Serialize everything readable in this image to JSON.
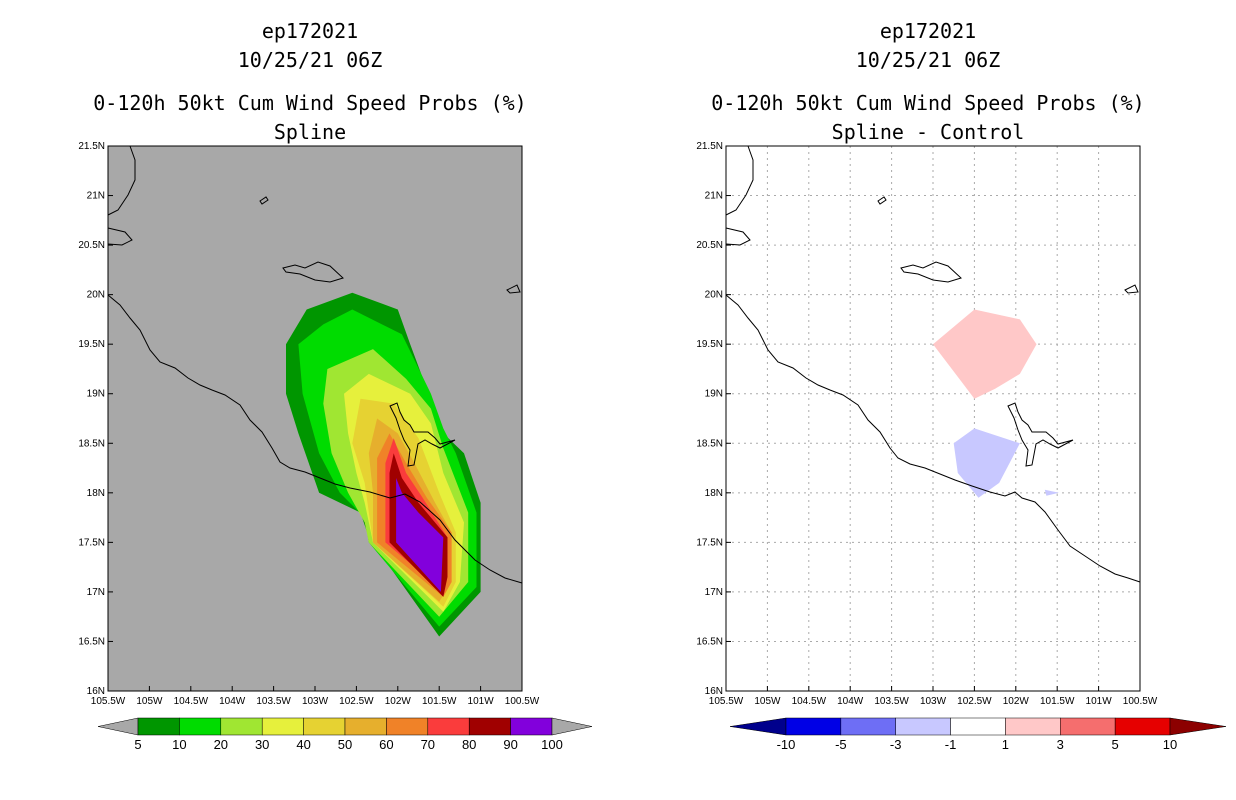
{
  "panels": [
    {
      "title_line1": "ep172021",
      "title_line2": "10/25/21 06Z",
      "title_line3": "0-120h 50kt Cum Wind Speed Probs (%)",
      "title_line4": "Spline"
    },
    {
      "title_line1": "ep172021",
      "title_line2": "10/25/21 06Z",
      "title_line3": "0-120h 50kt Cum Wind Speed Probs (%)",
      "title_line4": "Spline - Control"
    }
  ],
  "chart_data": [
    {
      "type": "heatmap",
      "title": "0-120h 50kt Cum Wind Speed Probs (%)",
      "subtitle": "Spline",
      "xlim": [
        -105.5,
        -100.5
      ],
      "ylim": [
        16,
        21.5
      ],
      "x_ticks": [
        "105.5W",
        "105W",
        "104.5W",
        "104W",
        "103.5W",
        "103W",
        "102.5W",
        "102W",
        "101.5W",
        "101W",
        "100.5W"
      ],
      "y_ticks": [
        "16N",
        "16.5N",
        "17N",
        "17.5N",
        "18N",
        "18.5N",
        "19N",
        "19.5N",
        "20N",
        "20.5N",
        "21N",
        "21.5N"
      ],
      "background": "#a8a8a8",
      "colorbar": {
        "labels": [
          "5",
          "10",
          "20",
          "30",
          "40",
          "50",
          "60",
          "70",
          "80",
          "90",
          "100"
        ],
        "colors": [
          "#009600",
          "#00dc00",
          "#a0e632",
          "#e6f03c",
          "#e6d232",
          "#e6af2d",
          "#f08228",
          "#fa3c3c",
          "#a00000",
          "#8200dc"
        ],
        "under_color": "#a8a8a8",
        "over_color": "#a8a8a8"
      },
      "contours": [
        {
          "level": 5,
          "color": "#009600",
          "polygon": [
            [
              -102.55,
              20.02
            ],
            [
              -103.1,
              19.85
            ],
            [
              -103.1,
              19.85
            ],
            [
              -103.35,
              19.5
            ],
            [
              -103.35,
              19.0
            ],
            [
              -103.2,
              18.6
            ],
            [
              -102.95,
              18.0
            ],
            [
              -102.45,
              17.8
            ],
            [
              -102.35,
              17.55
            ],
            [
              -101.5,
              16.55
            ],
            [
              -101.0,
              17.0
            ],
            [
              -101.0,
              17.9
            ],
            [
              -101.2,
              18.4
            ],
            [
              -101.45,
              18.6
            ],
            [
              -101.85,
              19.5
            ],
            [
              -102.0,
              19.85
            ]
          ]
        },
        {
          "level": 10,
          "color": "#00dc00",
          "polygon": [
            [
              -102.55,
              19.85
            ],
            [
              -102.9,
              19.7
            ],
            [
              -103.2,
              19.5
            ],
            [
              -103.15,
              19.0
            ],
            [
              -102.95,
              18.4
            ],
            [
              -102.7,
              18.0
            ],
            [
              -102.4,
              17.75
            ],
            [
              -102.35,
              17.5
            ],
            [
              -101.5,
              16.65
            ],
            [
              -101.05,
              17.05
            ],
            [
              -101.05,
              17.8
            ],
            [
              -101.3,
              18.4
            ],
            [
              -101.45,
              18.65
            ],
            [
              -101.6,
              19.0
            ],
            [
              -101.95,
              19.6
            ]
          ]
        },
        {
          "level": 20,
          "color": "#a0e632",
          "polygon": [
            [
              -102.3,
              19.45
            ],
            [
              -102.85,
              19.25
            ],
            [
              -102.9,
              18.9
            ],
            [
              -102.8,
              18.4
            ],
            [
              -102.6,
              18.0
            ],
            [
              -102.4,
              17.7
            ],
            [
              -102.35,
              17.5
            ],
            [
              -101.5,
              16.75
            ],
            [
              -101.15,
              17.1
            ],
            [
              -101.15,
              17.8
            ],
            [
              -101.45,
              18.45
            ],
            [
              -101.6,
              18.85
            ],
            [
              -101.9,
              19.15
            ]
          ]
        },
        {
          "level": 30,
          "color": "#e6f03c",
          "polygon": [
            [
              -102.35,
              19.2
            ],
            [
              -102.65,
              19.0
            ],
            [
              -102.6,
              18.6
            ],
            [
              -102.5,
              18.2
            ],
            [
              -102.4,
              17.9
            ],
            [
              -102.3,
              17.5
            ],
            [
              -101.45,
              16.8
            ],
            [
              -101.25,
              17.1
            ],
            [
              -101.2,
              17.7
            ],
            [
              -101.45,
              18.2
            ],
            [
              -101.6,
              18.7
            ],
            [
              -101.85,
              19.0
            ]
          ]
        },
        {
          "level": 40,
          "color": "#e6d232",
          "polygon": [
            [
              -102.45,
              18.95
            ],
            [
              -102.55,
              18.5
            ],
            [
              -102.4,
              18.1
            ],
            [
              -102.3,
              17.5
            ],
            [
              -101.45,
              16.85
            ],
            [
              -101.3,
              17.1
            ],
            [
              -101.3,
              17.6
            ],
            [
              -101.5,
              18.0
            ],
            [
              -101.75,
              18.55
            ],
            [
              -102.05,
              18.9
            ]
          ]
        },
        {
          "level": 50,
          "color": "#e6af2d",
          "polygon": [
            [
              -102.25,
              18.75
            ],
            [
              -102.35,
              18.4
            ],
            [
              -102.3,
              18.0
            ],
            [
              -102.3,
              17.5
            ],
            [
              -101.5,
              16.9
            ],
            [
              -101.35,
              17.1
            ],
            [
              -101.35,
              17.6
            ],
            [
              -101.55,
              17.9
            ],
            [
              -101.8,
              18.3
            ],
            [
              -102.0,
              18.6
            ]
          ]
        },
        {
          "level": 60,
          "color": "#f08228",
          "polygon": [
            [
              -102.1,
              18.6
            ],
            [
              -102.25,
              18.35
            ],
            [
              -102.25,
              17.5
            ],
            [
              -101.45,
              16.95
            ],
            [
              -101.35,
              17.1
            ],
            [
              -101.35,
              17.6
            ],
            [
              -101.65,
              17.95
            ],
            [
              -101.9,
              18.3
            ]
          ]
        },
        {
          "level": 70,
          "color": "#fa3c3c",
          "polygon": [
            [
              -102.05,
              18.55
            ],
            [
              -102.15,
              18.3
            ],
            [
              -102.15,
              17.5
            ],
            [
              -101.45,
              17.0
            ],
            [
              -101.4,
              17.2
            ],
            [
              -101.4,
              17.55
            ],
            [
              -101.7,
              17.95
            ],
            [
              -101.9,
              18.2
            ]
          ]
        },
        {
          "level": 80,
          "color": "#a00000",
          "polygon": [
            [
              -102.05,
              18.4
            ],
            [
              -102.1,
              18.2
            ],
            [
              -102.1,
              17.5
            ],
            [
              -101.45,
              16.95
            ],
            [
              -101.4,
              17.15
            ],
            [
              -101.4,
              17.55
            ],
            [
              -101.75,
              17.9
            ],
            [
              -101.95,
              18.15
            ]
          ]
        },
        {
          "level": 90,
          "color": "#8200dc",
          "polygon": [
            [
              -102.02,
              18.15
            ],
            [
              -102.02,
              17.5
            ],
            [
              -101.48,
              17.0
            ],
            [
              -101.45,
              17.55
            ],
            [
              -101.75,
              17.8
            ],
            [
              -101.95,
              18.0
            ]
          ]
        }
      ]
    },
    {
      "type": "heatmap",
      "title": "0-120h 50kt Cum Wind Speed Probs (%)",
      "subtitle": "Spline - Control",
      "xlim": [
        -105.5,
        -100.5
      ],
      "ylim": [
        16,
        21.5
      ],
      "x_ticks": [
        "105.5W",
        "105W",
        "104.5W",
        "104W",
        "103.5W",
        "103W",
        "102.5W",
        "102W",
        "101.5W",
        "101W",
        "100.5W"
      ],
      "y_ticks": [
        "16N",
        "16.5N",
        "17N",
        "17.5N",
        "18N",
        "18.5N",
        "19N",
        "19.5N",
        "20N",
        "20.5N",
        "21N",
        "21.5N"
      ],
      "grid": true,
      "background": "#ffffff",
      "colorbar": {
        "labels": [
          "-10",
          "-5",
          "-3",
          "-1",
          "1",
          "3",
          "5",
          "10"
        ],
        "colors": [
          "#0000e6",
          "#6e6ef5",
          "#c8c8ff",
          "#ffffff",
          "#ffc8c8",
          "#f56e6e",
          "#e60000"
        ],
        "under_color": "#00008c",
        "over_color": "#8c0000"
      },
      "contours": [
        {
          "level": 1,
          "color": "#ffc8c8",
          "polygon": [
            [
              -102.5,
              19.85
            ],
            [
              -103.0,
              19.5
            ],
            [
              -102.5,
              18.95
            ],
            [
              -102.25,
              19.05
            ],
            [
              -101.95,
              19.2
            ],
            [
              -101.75,
              19.5
            ],
            [
              -101.95,
              19.75
            ]
          ]
        },
        {
          "level": -1,
          "color": "#c8c8ff",
          "polygon": [
            [
              -102.5,
              18.65
            ],
            [
              -102.75,
              18.5
            ],
            [
              -102.7,
              18.2
            ],
            [
              -102.45,
              17.95
            ],
            [
              -102.2,
              18.1
            ],
            [
              -101.95,
              18.5
            ]
          ]
        },
        {
          "level": -1,
          "color": "#c8c8ff",
          "polygon": [
            [
              -101.65,
              18.03
            ],
            [
              -101.48,
              18.0
            ],
            [
              -101.63,
              17.97
            ]
          ]
        }
      ]
    }
  ]
}
